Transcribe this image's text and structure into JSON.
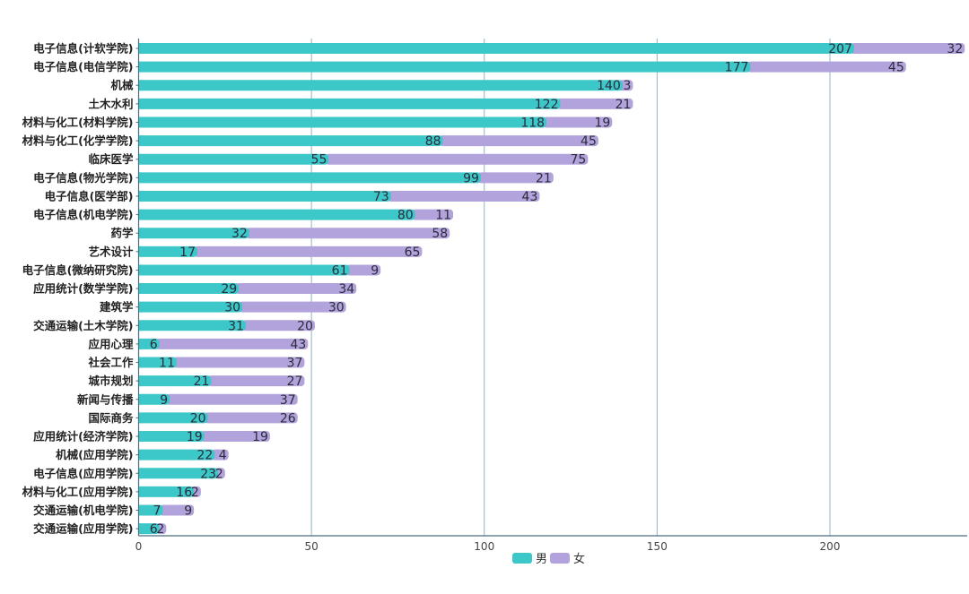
{
  "chart_data": {
    "type": "bar",
    "orientation": "horizontal",
    "stacked": true,
    "categories": [
      "电子信息(计软学院)",
      "电子信息(电信学院)",
      "机械",
      "土木水利",
      "材料与化工(材料学院)",
      "材料与化工(化学学院)",
      "临床医学",
      "电子信息(物光学院)",
      "电子信息(医学部)",
      "电子信息(机电学院)",
      "药学",
      "艺术设计",
      "电子信息(微纳研究院)",
      "应用统计(数学学院)",
      "建筑学",
      "交通运输(土木学院)",
      "应用心理",
      "社会工作",
      "城市规划",
      "新闻与传播",
      "国际商务",
      "应用统计(经济学院)",
      "机械(应用学院)",
      "电子信息(应用学院)",
      "材料与化工(应用学院)",
      "交通运输(机电学院)",
      "交通运输(应用学院)"
    ],
    "series": [
      {
        "name": "男",
        "color": "#3cc8c8",
        "values": [
          207,
          177,
          140,
          122,
          118,
          88,
          55,
          99,
          73,
          80,
          32,
          17,
          61,
          29,
          30,
          31,
          6,
          11,
          21,
          9,
          20,
          19,
          22,
          23,
          16,
          7,
          6
        ]
      },
      {
        "name": "女",
        "color": "#b3a3dc",
        "values": [
          32,
          45,
          3,
          21,
          19,
          45,
          75,
          21,
          43,
          11,
          58,
          65,
          9,
          34,
          30,
          20,
          43,
          37,
          27,
          37,
          26,
          19,
          4,
          2,
          2,
          9,
          2
        ]
      }
    ],
    "x_ticks": [
      "0",
      "50",
      "100",
      "150",
      "200"
    ],
    "xlim": [
      0,
      240
    ],
    "grid": true,
    "legend_position": "bottom-center",
    "title": "",
    "xlabel": "",
    "ylabel": ""
  }
}
